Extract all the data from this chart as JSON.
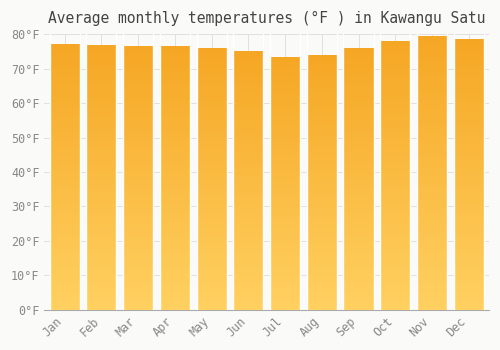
{
  "title": "Average monthly temperatures (°F ) in Kawangu Satu",
  "months": [
    "Jan",
    "Feb",
    "Mar",
    "Apr",
    "May",
    "Jun",
    "Jul",
    "Aug",
    "Sep",
    "Oct",
    "Nov",
    "Dec"
  ],
  "values": [
    77.2,
    77.0,
    76.6,
    76.5,
    76.0,
    75.0,
    73.5,
    74.0,
    76.0,
    78.0,
    79.5,
    78.5
  ],
  "bar_color_top": "#F5A623",
  "bar_color_bottom": "#FFD060",
  "ylim": [
    0,
    80
  ],
  "yticks": [
    0,
    10,
    20,
    30,
    40,
    50,
    60,
    70,
    80
  ],
  "ytick_labels": [
    "0°F",
    "10°F",
    "20°F",
    "30°F",
    "40°F",
    "50°F",
    "60°F",
    "70°F",
    "80°F"
  ],
  "background_color": "#FAFAF8",
  "grid_color": "#E0E0E0",
  "title_fontsize": 10.5,
  "tick_fontsize": 8.5
}
